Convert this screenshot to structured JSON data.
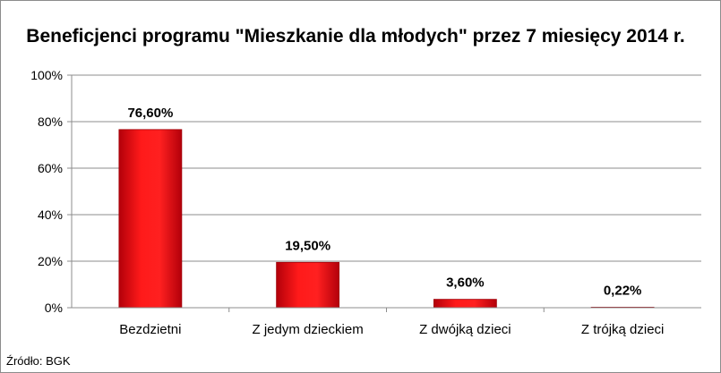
{
  "chart_data": {
    "type": "bar",
    "title": "Beneficjenci programu \"Mieszkanie dla młodych\" przez 7 miesięcy 2014 r.",
    "categories": [
      "Bezdzietni",
      "Z jedym dzieckiem",
      "Z dwójką dzieci",
      "Z trójką dzieci"
    ],
    "values": [
      76.6,
      19.5,
      3.6,
      0.22
    ],
    "data_labels": [
      "76,60%",
      "19,50%",
      "3,60%",
      "0,22%"
    ],
    "ylim": [
      0,
      100
    ],
    "yticks": [
      0,
      20,
      40,
      60,
      80,
      100
    ],
    "ytick_labels": [
      "0%",
      "20%",
      "40%",
      "60%",
      "80%",
      "100%"
    ],
    "grid": true,
    "legend": "none",
    "bar_color": "#e8000f",
    "source": "Źródło: BGK"
  }
}
